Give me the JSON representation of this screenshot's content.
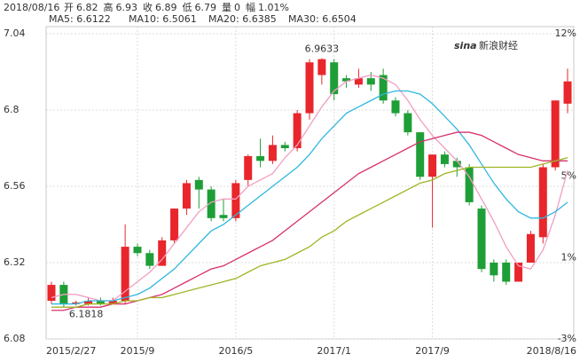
{
  "header": {
    "date": "2018/08/16",
    "fields": [
      {
        "label": "开",
        "value": "6.82"
      },
      {
        "label": "高",
        "value": "6.93"
      },
      {
        "label": "收",
        "value": "6.89"
      },
      {
        "label": "低",
        "value": "6.79"
      },
      {
        "label": "量",
        "value": "0"
      },
      {
        "label": "幅",
        "value": "1.01%"
      }
    ]
  },
  "chart_data": {
    "type": "candlestick",
    "watermark_logo": "sina",
    "watermark": "新浪财经",
    "categories": [
      "2015/2/27",
      null,
      null,
      null,
      null,
      null,
      null,
      "2015/9",
      null,
      null,
      null,
      null,
      null,
      null,
      null,
      "2016/5",
      null,
      null,
      null,
      null,
      null,
      null,
      null,
      "2017/1",
      null,
      null,
      null,
      null,
      null,
      null,
      null,
      "2017/9",
      null,
      null,
      null,
      null,
      null,
      null,
      null,
      null,
      null,
      null,
      "2018/8/16"
    ],
    "open": [
      6.2,
      6.25,
      6.19,
      6.19,
      6.2,
      6.19,
      6.2,
      6.37,
      6.35,
      6.31,
      6.39,
      6.49,
      6.58,
      6.55,
      6.47,
      6.46,
      6.58,
      6.655,
      6.64,
      6.69,
      6.68,
      6.79,
      6.91,
      6.95,
      6.9,
      6.88,
      6.9,
      6.91,
      6.83,
      6.79,
      6.73,
      6.59,
      6.66,
      6.64,
      6.62,
      6.49,
      6.32,
      6.32,
      6.26,
      6.32,
      6.4,
      6.62,
      6.82
    ],
    "high": [
      6.26,
      6.26,
      6.2,
      6.21,
      6.21,
      6.21,
      6.44,
      6.38,
      6.36,
      6.4,
      6.49,
      6.58,
      6.59,
      6.56,
      6.52,
      6.58,
      6.66,
      6.71,
      6.72,
      6.7,
      6.8,
      6.96,
      6.9633,
      6.96,
      6.91,
      6.93,
      6.92,
      6.93,
      6.84,
      6.8,
      6.73,
      6.66,
      6.67,
      6.65,
      6.63,
      6.5,
      6.33,
      6.33,
      6.32,
      6.42,
      6.63,
      6.83,
      6.93
    ],
    "low": [
      6.19,
      6.1818,
      6.185,
      6.185,
      6.185,
      6.19,
      6.19,
      6.34,
      6.3,
      6.31,
      6.38,
      6.47,
      6.49,
      6.45,
      6.45,
      6.45,
      6.56,
      6.62,
      6.63,
      6.67,
      6.67,
      6.77,
      6.88,
      6.83,
      6.87,
      6.87,
      6.86,
      6.82,
      6.78,
      6.72,
      6.58,
      6.43,
      6.62,
      6.59,
      6.5,
      6.29,
      6.26,
      6.25,
      6.26,
      6.32,
      6.38,
      6.61,
      6.79
    ],
    "close": [
      6.25,
      6.19,
      6.195,
      6.2,
      6.19,
      6.2,
      6.37,
      6.35,
      6.31,
      6.39,
      6.49,
      6.57,
      6.55,
      6.46,
      6.46,
      6.57,
      6.655,
      6.64,
      6.69,
      6.68,
      6.79,
      6.95,
      6.96,
      6.85,
      6.89,
      6.9,
      6.88,
      6.83,
      6.79,
      6.73,
      6.59,
      6.66,
      6.63,
      6.62,
      6.51,
      6.3,
      6.28,
      6.26,
      6.32,
      6.41,
      6.62,
      6.83,
      6.89
    ],
    "up_color": "#e8262b",
    "down_color": "#1e9e37",
    "series": [
      {
        "name": "MA5: 6.6122",
        "color": "#f19ec2",
        "values": [
          6.21,
          6.22,
          6.22,
          6.21,
          6.2,
          6.2,
          6.23,
          6.26,
          6.29,
          6.33,
          6.38,
          6.43,
          6.48,
          6.51,
          6.52,
          6.52,
          6.56,
          6.58,
          6.6,
          6.65,
          6.69,
          6.75,
          6.81,
          6.86,
          6.89,
          6.9,
          6.91,
          6.9,
          6.88,
          6.83,
          6.77,
          6.72,
          6.68,
          6.64,
          6.59,
          6.52,
          6.45,
          6.37,
          6.31,
          6.3,
          6.36,
          6.47,
          6.61
        ]
      },
      {
        "name": "MA10: 6.5061",
        "color": "#2fb7e0",
        "values": [
          6.19,
          6.19,
          6.19,
          6.2,
          6.2,
          6.2,
          6.21,
          6.22,
          6.24,
          6.27,
          6.3,
          6.34,
          6.38,
          6.42,
          6.44,
          6.47,
          6.5,
          6.53,
          6.56,
          6.59,
          6.62,
          6.66,
          6.71,
          6.75,
          6.79,
          6.81,
          6.83,
          6.85,
          6.86,
          6.86,
          6.85,
          6.82,
          6.78,
          6.74,
          6.69,
          6.63,
          6.57,
          6.52,
          6.48,
          6.46,
          6.46,
          6.48,
          6.51
        ]
      },
      {
        "name": "MA20: 6.6385",
        "color": "#d7306e",
        "values": [
          6.17,
          6.17,
          6.18,
          6.18,
          6.18,
          6.19,
          6.19,
          6.2,
          6.21,
          6.22,
          6.24,
          6.26,
          6.28,
          6.3,
          6.31,
          6.33,
          6.35,
          6.37,
          6.39,
          6.42,
          6.45,
          6.48,
          6.51,
          6.54,
          6.57,
          6.6,
          6.62,
          6.64,
          6.66,
          6.68,
          6.7,
          6.71,
          6.72,
          6.73,
          6.73,
          6.72,
          6.7,
          6.68,
          6.66,
          6.65,
          6.64,
          6.64,
          6.64
        ]
      },
      {
        "name": "MA30: 6.6504",
        "color": "#9fb524",
        "values": [
          6.18,
          6.18,
          6.18,
          6.19,
          6.19,
          6.19,
          6.2,
          6.2,
          6.21,
          6.21,
          6.22,
          6.23,
          6.24,
          6.25,
          6.26,
          6.27,
          6.29,
          6.31,
          6.32,
          6.33,
          6.35,
          6.37,
          6.4,
          6.42,
          6.45,
          6.47,
          6.49,
          6.51,
          6.53,
          6.55,
          6.57,
          6.58,
          6.6,
          6.61,
          6.62,
          6.62,
          6.62,
          6.62,
          6.62,
          6.62,
          6.63,
          6.64,
          6.65
        ]
      }
    ],
    "annotations": [
      "6.9633",
      "6.1818"
    ],
    "ylim": [
      6.08,
      7.04
    ],
    "yticks": [
      7.04,
      6.8,
      6.56,
      6.32,
      6.08
    ],
    "y2lim": [
      -3,
      12
    ],
    "y2ticks": [
      {
        "value": 12,
        "label": "12%"
      },
      {
        "value": 5,
        "label": "5%"
      },
      {
        "value": 1,
        "label": "1%"
      },
      {
        "value": -3,
        "label": "-3%"
      }
    ],
    "grid": true
  }
}
